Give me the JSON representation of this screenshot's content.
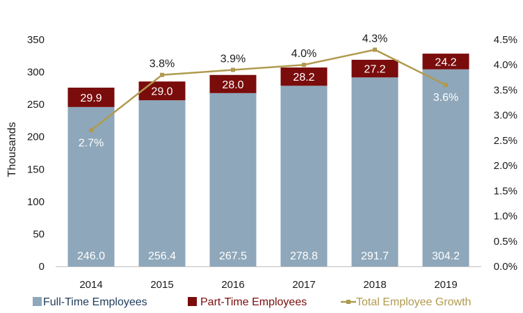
{
  "chart_data": {
    "type": "bar",
    "stacked": true,
    "categories": [
      "2014",
      "2015",
      "2016",
      "2017",
      "2018",
      "2019"
    ],
    "ylabel": "Thousands",
    "ylim": [
      0,
      350
    ],
    "y_ticks": [
      "0",
      "50",
      "100",
      "150",
      "200",
      "250",
      "300",
      "350"
    ],
    "y2lim": [
      0,
      4.5
    ],
    "y2_ticks": [
      "0.0%",
      "0.5%",
      "1.0%",
      "1.5%",
      "2.0%",
      "2.5%",
      "3.0%",
      "3.5%",
      "4.0%",
      "4.5%"
    ],
    "series": [
      {
        "name": "Full-Time Employees",
        "type": "bar",
        "color": "#8ea7ba",
        "values": [
          246.0,
          256.4,
          267.5,
          278.8,
          291.7,
          304.2
        ],
        "labels": [
          "246.0",
          "256.4",
          "267.5",
          "278.8",
          "291.7",
          "304.2"
        ]
      },
      {
        "name": "Part-Time Employees",
        "type": "bar",
        "color": "#7a0c0c",
        "values": [
          29.9,
          29.0,
          28.0,
          28.2,
          27.2,
          24.2
        ],
        "labels": [
          "29.9",
          "29.0",
          "28.0",
          "28.2",
          "27.2",
          "24.2"
        ]
      },
      {
        "name": "Total Employee Growth",
        "type": "line",
        "axis": "secondary",
        "color": "#b09a4e",
        "values": [
          2.7,
          3.8,
          3.9,
          4.0,
          4.3,
          3.6
        ],
        "labels": [
          "2.7%",
          "3.8%",
          "3.9%",
          "4.0%",
          "4.3%",
          "3.6%"
        ],
        "label_colors": [
          "#ffffff",
          "#1a1a1a",
          "#1a1a1a",
          "#1a1a1a",
          "#1a1a1a",
          "#ffffff"
        ]
      }
    ],
    "legend": [
      "Full-Time Employees",
      "Part-Time Employees",
      "Total Employee Growth"
    ],
    "legend_position": "bottom",
    "grid": false
  }
}
